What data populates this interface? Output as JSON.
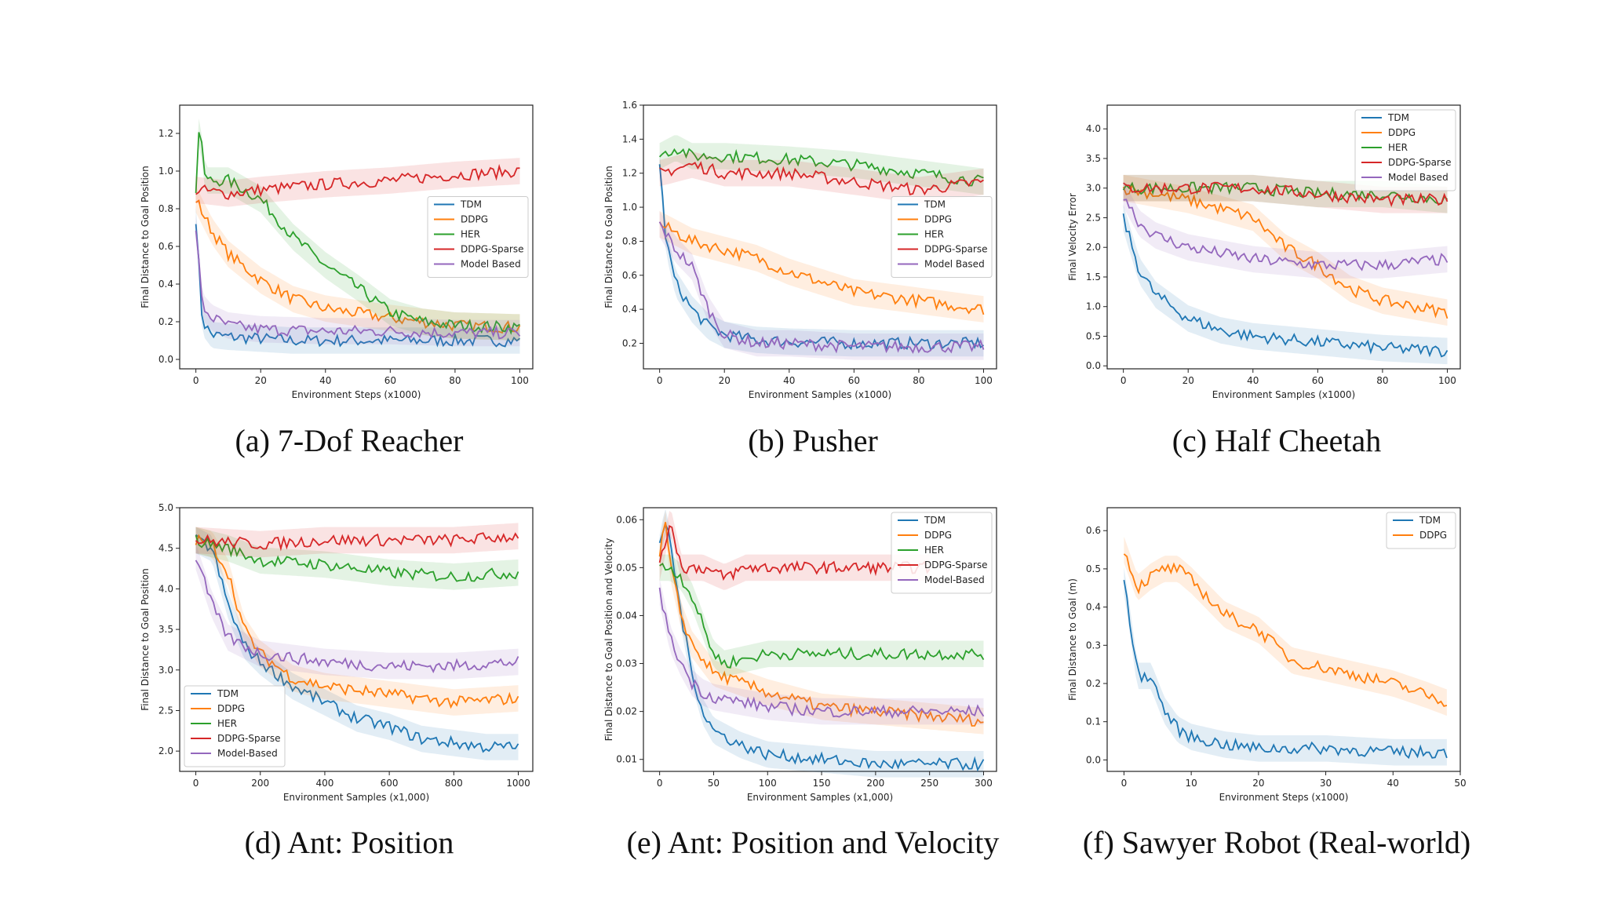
{
  "palette": {
    "TDM": "#1f77b4",
    "DDPG": "#ff7f0e",
    "HER": "#2ca02c",
    "DDPG-Sparse": "#d62728",
    "Model Based": "#9467bd"
  },
  "chart_data": [
    {
      "type": "line",
      "caption": "(a) 7-Dof Reacher",
      "xlabel": "Environment Steps (x1000)",
      "ylabel": "Final Distance to Goal Position",
      "xlim": [
        -5,
        104
      ],
      "ylim": [
        -0.05,
        1.35
      ],
      "xticks": [
        "0",
        "20",
        "40",
        "60",
        "80",
        "100"
      ],
      "xtick_values": [
        0,
        20,
        40,
        60,
        80,
        100
      ],
      "yticks": [
        "0.0",
        "0.2",
        "0.4",
        "0.6",
        "0.8",
        "1.0",
        "1.2"
      ],
      "ytick_values": [
        0,
        0.2,
        0.4,
        0.6,
        0.8,
        1.0,
        1.2
      ],
      "legend_pos": "center-right",
      "legend_labels": [
        "TDM",
        "DDPG",
        "HER",
        "DDPG-Sparse",
        "Model Based"
      ],
      "series": [
        {
          "name": "TDM",
          "x": [
            0,
            2,
            5,
            10,
            20,
            30,
            40,
            60,
            80,
            100
          ],
          "y": [
            0.75,
            0.2,
            0.13,
            0.12,
            0.11,
            0.1,
            0.1,
            0.1,
            0.1,
            0.1
          ]
        },
        {
          "name": "DDPG",
          "x": [
            0,
            5,
            10,
            20,
            30,
            40,
            60,
            80,
            100
          ],
          "y": [
            0.85,
            0.68,
            0.56,
            0.42,
            0.32,
            0.27,
            0.22,
            0.18,
            0.17
          ]
        },
        {
          "name": "HER",
          "x": [
            0,
            1,
            3,
            10,
            20,
            30,
            40,
            50,
            60,
            70,
            80,
            100
          ],
          "y": [
            0.9,
            1.24,
            0.95,
            0.95,
            0.85,
            0.65,
            0.5,
            0.38,
            0.25,
            0.2,
            0.18,
            0.17
          ]
        },
        {
          "name": "DDPG-Sparse",
          "x": [
            0,
            10,
            20,
            40,
            60,
            80,
            100
          ],
          "y": [
            0.9,
            0.88,
            0.9,
            0.93,
            0.95,
            0.98,
            1.0
          ]
        },
        {
          "name": "Model Based",
          "x": [
            0,
            2,
            5,
            10,
            20,
            40,
            60,
            80,
            100
          ],
          "y": [
            0.7,
            0.28,
            0.22,
            0.18,
            0.16,
            0.15,
            0.15,
            0.14,
            0.14
          ]
        }
      ]
    },
    {
      "type": "line",
      "caption": "(b) Pusher",
      "xlabel": "Environment Samples (x1000)",
      "ylabel": "Final Distance to Goal Position",
      "xlim": [
        -5,
        104
      ],
      "ylim": [
        0.05,
        1.6
      ],
      "xticks": [
        "0",
        "20",
        "40",
        "60",
        "80",
        "100"
      ],
      "xtick_values": [
        0,
        20,
        40,
        60,
        80,
        100
      ],
      "yticks": [
        "0.2",
        "0.4",
        "0.6",
        "0.8",
        "1.0",
        "1.2",
        "1.4",
        "1.6"
      ],
      "ytick_values": [
        0.2,
        0.4,
        0.6,
        0.8,
        1.0,
        1.2,
        1.4,
        1.6
      ],
      "legend_pos": "center-right",
      "legend_labels": [
        "TDM",
        "DDPG",
        "HER",
        "DDPG-Sparse",
        "Model Based"
      ],
      "series": [
        {
          "name": "TDM",
          "x": [
            0,
            2,
            5,
            10,
            15,
            20,
            30,
            40,
            60,
            80,
            100
          ],
          "y": [
            1.25,
            0.8,
            0.55,
            0.4,
            0.3,
            0.25,
            0.22,
            0.21,
            0.2,
            0.2,
            0.2
          ]
        },
        {
          "name": "DDPG",
          "x": [
            0,
            5,
            10,
            20,
            30,
            40,
            60,
            80,
            100
          ],
          "y": [
            0.9,
            0.85,
            0.8,
            0.75,
            0.7,
            0.62,
            0.5,
            0.45,
            0.4
          ]
        },
        {
          "name": "HER",
          "x": [
            0,
            5,
            10,
            20,
            40,
            60,
            80,
            100
          ],
          "y": [
            1.3,
            1.35,
            1.3,
            1.3,
            1.28,
            1.25,
            1.2,
            1.15
          ]
        },
        {
          "name": "DDPG-Sparse",
          "x": [
            0,
            10,
            20,
            40,
            60,
            80,
            100
          ],
          "y": [
            1.2,
            1.25,
            1.2,
            1.2,
            1.15,
            1.1,
            1.15
          ]
        },
        {
          "name": "Model Based",
          "x": [
            0,
            5,
            10,
            15,
            20,
            30,
            40,
            60,
            80,
            100
          ],
          "y": [
            0.9,
            0.75,
            0.65,
            0.4,
            0.25,
            0.2,
            0.2,
            0.18,
            0.18,
            0.18
          ]
        }
      ]
    },
    {
      "type": "line",
      "caption": "(c) Half Cheetah",
      "xlabel": "Environment Samples (x1000)",
      "ylabel": "Final Velocity Error",
      "xlim": [
        -5,
        104
      ],
      "ylim": [
        -0.05,
        4.4
      ],
      "xticks": [
        "0",
        "20",
        "40",
        "60",
        "80",
        "100"
      ],
      "xtick_values": [
        0,
        20,
        40,
        60,
        80,
        100
      ],
      "yticks": [
        "0.0",
        "0.5",
        "1.0",
        "1.5",
        "2.0",
        "2.5",
        "3.0",
        "3.5",
        "4.0"
      ],
      "ytick_values": [
        0,
        0.5,
        1.0,
        1.5,
        2.0,
        2.5,
        3.0,
        3.5,
        4.0
      ],
      "legend_pos": "top-right",
      "legend_labels": [
        "TDM",
        "DDPG",
        "HER",
        "DDPG-Sparse",
        "Model Based"
      ],
      "series": [
        {
          "name": "TDM",
          "x": [
            0,
            5,
            10,
            20,
            30,
            40,
            60,
            80,
            100
          ],
          "y": [
            2.5,
            1.6,
            1.2,
            0.8,
            0.6,
            0.5,
            0.4,
            0.3,
            0.25
          ]
        },
        {
          "name": "DDPG",
          "x": [
            0,
            10,
            20,
            40,
            50,
            60,
            70,
            80,
            100
          ],
          "y": [
            3.0,
            2.9,
            2.8,
            2.5,
            2.0,
            1.7,
            1.3,
            1.1,
            0.9
          ]
        },
        {
          "name": "HER",
          "x": [
            0,
            20,
            40,
            60,
            80,
            100
          ],
          "y": [
            3.0,
            3.0,
            3.0,
            2.9,
            2.9,
            2.8
          ]
        },
        {
          "name": "DDPG-Sparse",
          "x": [
            0,
            20,
            40,
            60,
            80,
            100
          ],
          "y": [
            3.0,
            3.0,
            3.0,
            2.9,
            2.8,
            2.8
          ]
        },
        {
          "name": "Model Based",
          "x": [
            0,
            5,
            10,
            20,
            40,
            60,
            80,
            100
          ],
          "y": [
            2.9,
            2.4,
            2.2,
            2.0,
            1.8,
            1.7,
            1.7,
            1.8
          ]
        }
      ]
    },
    {
      "type": "line",
      "caption": "(d) Ant: Position",
      "xlabel": "Environment Samples (x1,000)",
      "ylabel": "Final Distance to Goal Position",
      "xlim": [
        -50,
        1045
      ],
      "ylim": [
        1.75,
        5.0
      ],
      "xticks": [
        "0",
        "200",
        "400",
        "600",
        "800",
        "1000"
      ],
      "xtick_values": [
        0,
        200,
        400,
        600,
        800,
        1000
      ],
      "yticks": [
        "2.0",
        "2.5",
        "3.0",
        "3.5",
        "4.0",
        "4.5",
        "5.0"
      ],
      "ytick_values": [
        2.0,
        2.5,
        3.0,
        3.5,
        4.0,
        4.5,
        5.0
      ],
      "legend_pos": "bottom-left",
      "legend_labels": [
        "TDM",
        "DDPG",
        "HER",
        "DDPG-Sparse",
        "Model-Based"
      ],
      "series": [
        {
          "name": "TDM",
          "x": [
            0,
            50,
            100,
            150,
            200,
            300,
            400,
            500,
            600,
            700,
            800,
            900,
            1000
          ],
          "y": [
            4.6,
            4.5,
            3.8,
            3.3,
            3.1,
            2.8,
            2.6,
            2.4,
            2.3,
            2.15,
            2.1,
            2.05,
            2.05
          ]
        },
        {
          "name": "DDPG",
          "x": [
            0,
            50,
            100,
            150,
            200,
            300,
            400,
            600,
            800,
            1000
          ],
          "y": [
            4.6,
            4.55,
            4.2,
            3.5,
            3.2,
            2.9,
            2.8,
            2.7,
            2.6,
            2.65
          ]
        },
        {
          "name": "HER",
          "x": [
            0,
            100,
            200,
            400,
            600,
            800,
            1000
          ],
          "y": [
            4.6,
            4.5,
            4.35,
            4.3,
            4.2,
            4.15,
            4.2
          ]
        },
        {
          "name": "DDPG-Sparse",
          "x": [
            0,
            200,
            400,
            600,
            800,
            1000
          ],
          "y": [
            4.6,
            4.55,
            4.6,
            4.6,
            4.6,
            4.65
          ]
        },
        {
          "name": "Model-Based",
          "x": [
            0,
            50,
            100,
            200,
            400,
            600,
            800,
            1000
          ],
          "y": [
            4.4,
            3.8,
            3.4,
            3.2,
            3.1,
            3.05,
            3.05,
            3.1
          ]
        }
      ]
    },
    {
      "type": "line",
      "caption": "(e) Ant: Position and Velocity",
      "xlabel": "Environment Samples (x1,000)",
      "ylabel": "Final Distance to Goal Position and Velocity",
      "xlim": [
        -15,
        312
      ],
      "ylim": [
        0.0075,
        0.0625
      ],
      "xticks": [
        "0",
        "50",
        "100",
        "150",
        "200",
        "250",
        "300"
      ],
      "xtick_values": [
        0,
        50,
        100,
        150,
        200,
        250,
        300
      ],
      "yticks": [
        "0.01",
        "0.02",
        "0.03",
        "0.04",
        "0.05",
        "0.06"
      ],
      "ytick_values": [
        0.01,
        0.02,
        0.03,
        0.04,
        0.05,
        0.06
      ],
      "legend_pos": "top-right",
      "legend_labels": [
        "TDM",
        "DDPG",
        "HER",
        "DDPG-Sparse",
        "Model-Based"
      ],
      "series": [
        {
          "name": "TDM",
          "x": [
            0,
            5,
            10,
            20,
            30,
            40,
            50,
            75,
            100,
            150,
            200,
            250,
            300
          ],
          "y": [
            0.054,
            0.06,
            0.055,
            0.04,
            0.028,
            0.02,
            0.016,
            0.013,
            0.011,
            0.01,
            0.009,
            0.009,
            0.009
          ]
        },
        {
          "name": "DDPG",
          "x": [
            0,
            5,
            10,
            20,
            30,
            50,
            75,
            100,
            150,
            200,
            300
          ],
          "y": [
            0.052,
            0.06,
            0.05,
            0.04,
            0.034,
            0.028,
            0.026,
            0.024,
            0.021,
            0.02,
            0.018
          ]
        },
        {
          "name": "HER",
          "x": [
            0,
            10,
            20,
            30,
            40,
            50,
            60,
            100,
            150,
            200,
            250,
            300
          ],
          "y": [
            0.05,
            0.05,
            0.048,
            0.044,
            0.038,
            0.032,
            0.03,
            0.032,
            0.032,
            0.032,
            0.032,
            0.032
          ]
        },
        {
          "name": "DDPG-Sparse",
          "x": [
            0,
            10,
            20,
            40,
            60,
            80,
            100,
            150,
            200,
            250
          ],
          "y": [
            0.05,
            0.06,
            0.05,
            0.05,
            0.048,
            0.05,
            0.05,
            0.05,
            0.05,
            0.05
          ]
        },
        {
          "name": "Model-Based",
          "x": [
            0,
            10,
            20,
            30,
            40,
            50,
            75,
            100,
            150,
            200,
            300
          ],
          "y": [
            0.045,
            0.035,
            0.03,
            0.026,
            0.024,
            0.023,
            0.022,
            0.021,
            0.02,
            0.02,
            0.02
          ]
        }
      ]
    },
    {
      "type": "line",
      "caption": "(f) Sawyer Robot (Real-world)",
      "xlabel": "Environment Steps (x1000)",
      "ylabel": "Final Distance to Goal (m)",
      "xlim": [
        -2.5,
        50
      ],
      "ylim": [
        -0.03,
        0.66
      ],
      "xticks": [
        "0",
        "10",
        "20",
        "30",
        "40",
        "50"
      ],
      "xtick_values": [
        0,
        10,
        20,
        30,
        40,
        50
      ],
      "yticks": [
        "0.0",
        "0.1",
        "0.2",
        "0.3",
        "0.4",
        "0.5",
        "0.6"
      ],
      "ytick_values": [
        0,
        0.1,
        0.2,
        0.3,
        0.4,
        0.5,
        0.6
      ],
      "legend_pos": "top-right",
      "legend_labels": [
        "TDM",
        "DDPG"
      ],
      "series": [
        {
          "name": "TDM",
          "x": [
            0,
            1,
            2,
            4,
            6,
            8,
            10,
            15,
            20,
            30,
            40,
            48
          ],
          "y": [
            0.47,
            0.35,
            0.22,
            0.22,
            0.13,
            0.08,
            0.06,
            0.04,
            0.03,
            0.03,
            0.02,
            0.02
          ]
        },
        {
          "name": "DDPG",
          "x": [
            0,
            2,
            4,
            6,
            8,
            10,
            15,
            20,
            25,
            30,
            35,
            40,
            45,
            48
          ],
          "y": [
            0.55,
            0.45,
            0.48,
            0.5,
            0.5,
            0.47,
            0.38,
            0.34,
            0.26,
            0.24,
            0.22,
            0.2,
            0.17,
            0.15
          ]
        }
      ]
    }
  ]
}
